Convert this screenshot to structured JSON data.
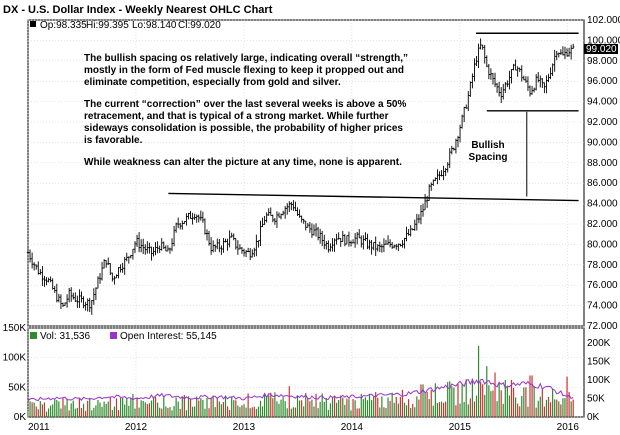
{
  "title": "DX - U.S. Dollar Index - Weekly Nearest OHLC Chart",
  "quote": {
    "op": "Op:98.335",
    "hi": "Hi:99.395",
    "lo": "Lo:98.140",
    "cl": "Cl:99.020",
    "last_badge": "99.020"
  },
  "volume_legend": {
    "vol": "Vol: 31,536",
    "oi": "Open Interest: 55,145"
  },
  "annotations": {
    "para1": [
      "The bullish spacing os relatively large, indicating overall “strength,”",
      "mostly in the form of Fed muscle flexing to keep it propped out and",
      "eliminate competition, especially from gold and silver."
    ],
    "para2": [
      "The current “correction” over the last several weeks is above a 50%",
      "retracement, and that is typical of a strong market.  While further",
      "sideways consolidation  is possible, the probability of higher prices",
      "is favorable."
    ],
    "para3": [
      "While weakness can alter the picture at any time, none is apparent."
    ],
    "spacing_label": [
      "Bullish",
      "Spacing"
    ]
  },
  "colors": {
    "background": "#ffffff",
    "grid": "#c8c8c8",
    "bars": "#000000",
    "volume_up": "#2e8b2e",
    "volume_down": "#cc3333",
    "open_interest": "#9933cc",
    "badge": "#000000"
  },
  "chart_data": [
    {
      "type": "ohlc",
      "x_axis": {
        "labels": [
          "2011",
          "2012",
          "2013",
          "2014",
          "2015",
          "2016"
        ],
        "range": [
          2011.0,
          2016.15
        ]
      },
      "y_axis": {
        "range": [
          72,
          102
        ],
        "ticks": [
          "72.000",
          "74.000",
          "76.000",
          "78.000",
          "80.000",
          "82.000",
          "84.000",
          "86.000",
          "88.000",
          "90.000",
          "92.000",
          "94.000",
          "96.000",
          "98.000",
          "100.000",
          "102.000"
        ]
      },
      "grid": true,
      "close_path": [
        [
          2011.0,
          79.2
        ],
        [
          2011.05,
          78.2
        ],
        [
          2011.1,
          77.3
        ],
        [
          2011.18,
          76.6
        ],
        [
          2011.25,
          75.2
        ],
        [
          2011.32,
          73.8
        ],
        [
          2011.38,
          75.1
        ],
        [
          2011.45,
          74.6
        ],
        [
          2011.52,
          74.4
        ],
        [
          2011.58,
          74.2
        ],
        [
          2011.65,
          76.4
        ],
        [
          2011.72,
          78.6
        ],
        [
          2011.78,
          76.6
        ],
        [
          2011.85,
          77.8
        ],
        [
          2011.92,
          78.6
        ],
        [
          2012.0,
          80.3
        ],
        [
          2012.08,
          79.6
        ],
        [
          2012.15,
          79.1
        ],
        [
          2012.22,
          79.9
        ],
        [
          2012.3,
          79.1
        ],
        [
          2012.38,
          82.0
        ],
        [
          2012.45,
          82.4
        ],
        [
          2012.55,
          83.1
        ],
        [
          2012.62,
          82.0
        ],
        [
          2012.7,
          79.6
        ],
        [
          2012.78,
          79.8
        ],
        [
          2012.88,
          80.6
        ],
        [
          2012.95,
          79.6
        ],
        [
          2013.05,
          79.1
        ],
        [
          2013.12,
          80.2
        ],
        [
          2013.2,
          82.8
        ],
        [
          2013.28,
          82.6
        ],
        [
          2013.38,
          83.6
        ],
        [
          2013.45,
          84.0
        ],
        [
          2013.52,
          82.4
        ],
        [
          2013.6,
          81.6
        ],
        [
          2013.68,
          81.0
        ],
        [
          2013.78,
          79.8
        ],
        [
          2013.85,
          80.8
        ],
        [
          2013.95,
          80.4
        ],
        [
          2014.05,
          80.6
        ],
        [
          2014.15,
          80.0
        ],
        [
          2014.25,
          79.6
        ],
        [
          2014.35,
          80.0
        ],
        [
          2014.45,
          80.2
        ],
        [
          2014.55,
          81.2
        ],
        [
          2014.65,
          83.2
        ],
        [
          2014.72,
          85.4
        ],
        [
          2014.8,
          86.6
        ],
        [
          2014.88,
          88.0
        ],
        [
          2014.95,
          89.8
        ],
        [
          2015.02,
          92.2
        ],
        [
          2015.08,
          94.6
        ],
        [
          2015.15,
          98.2
        ],
        [
          2015.2,
          99.6
        ],
        [
          2015.25,
          97.4
        ],
        [
          2015.32,
          95.8
        ],
        [
          2015.38,
          94.8
        ],
        [
          2015.45,
          96.2
        ],
        [
          2015.52,
          97.6
        ],
        [
          2015.58,
          96.4
        ],
        [
          2015.65,
          95.0
        ],
        [
          2015.72,
          96.2
        ],
        [
          2015.78,
          95.2
        ],
        [
          2015.85,
          97.4
        ],
        [
          2015.9,
          99.2
        ],
        [
          2015.95,
          98.4
        ],
        [
          2016.0,
          99.0
        ],
        [
          2016.05,
          99.02
        ]
      ],
      "lines": [
        {
          "name": "support",
          "from": [
            2012.3,
            85.0
          ],
          "to": [
            2016.1,
            84.3
          ]
        },
        {
          "name": "upper",
          "from": [
            2015.15,
            100.7
          ],
          "to": [
            2016.1,
            100.7
          ]
        },
        {
          "name": "lower",
          "from": [
            2015.25,
            93.1
          ],
          "to": [
            2016.1,
            93.1
          ]
        }
      ],
      "spacing_arrow": {
        "x": 2015.62,
        "from": 84.7,
        "to": 93.0
      }
    },
    {
      "type": "bar+line",
      "y_axis_left": {
        "range": [
          0,
          150000
        ],
        "ticks": [
          "0K",
          "50K",
          "100K",
          "150K"
        ]
      },
      "y_axis_right": {
        "range": [
          0,
          240000
        ],
        "ticks": [
          "0K",
          "50K",
          "100K",
          "150K",
          "200K"
        ]
      },
      "volume_path": [
        [
          2011.0,
          18000
        ],
        [
          2011.5,
          22000
        ],
        [
          2012.0,
          26000
        ],
        [
          2012.5,
          24000
        ],
        [
          2013.0,
          26000
        ],
        [
          2013.5,
          28000
        ],
        [
          2014.0,
          24000
        ],
        [
          2014.5,
          32000
        ],
        [
          2015.0,
          42000
        ],
        [
          2015.25,
          58000
        ],
        [
          2015.5,
          40000
        ],
        [
          2015.75,
          34000
        ],
        [
          2016.0,
          31536
        ]
      ],
      "volume_spikes": [
        [
          2015.17,
          120000
        ],
        [
          2015.33,
          75000
        ],
        [
          2015.66,
          70000
        ],
        [
          2014.65,
          55000
        ],
        [
          2013.42,
          52000
        ],
        [
          2016.0,
          68000
        ]
      ],
      "open_interest_path": [
        [
          2011.0,
          45000
        ],
        [
          2011.25,
          52000
        ],
        [
          2011.5,
          48000
        ],
        [
          2011.75,
          55000
        ],
        [
          2012.0,
          50000
        ],
        [
          2012.25,
          58000
        ],
        [
          2012.5,
          52000
        ],
        [
          2012.75,
          55000
        ],
        [
          2013.0,
          50000
        ],
        [
          2013.25,
          60000
        ],
        [
          2013.5,
          56000
        ],
        [
          2013.75,
          52000
        ],
        [
          2014.0,
          54000
        ],
        [
          2014.25,
          58000
        ],
        [
          2014.5,
          62000
        ],
        [
          2014.75,
          75000
        ],
        [
          2015.0,
          88000
        ],
        [
          2015.2,
          100000
        ],
        [
          2015.4,
          85000
        ],
        [
          2015.6,
          90000
        ],
        [
          2015.8,
          82000
        ],
        [
          2016.0,
          55145
        ]
      ]
    }
  ]
}
